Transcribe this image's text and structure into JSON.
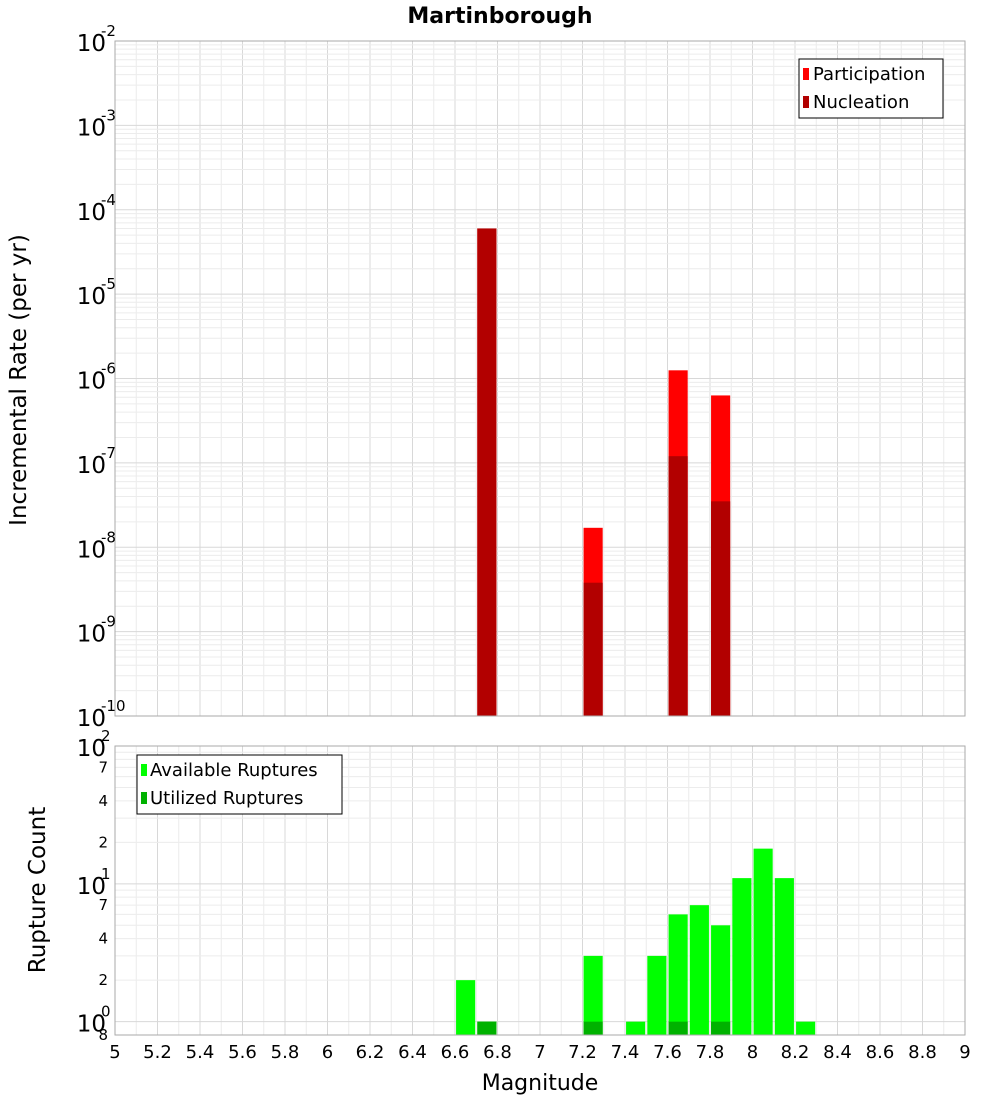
{
  "chart_data": [
    {
      "type": "bar",
      "title": "Martinborough",
      "xlabel": "Magnitude",
      "ylabel": "Incremental Rate (per yr)",
      "yscale": "log",
      "xlim": [
        5,
        9
      ],
      "ylim": [
        1e-10,
        0.01
      ],
      "bar_width": 0.09,
      "legend": {
        "placement": "top-right",
        "entries": [
          "Participation",
          "Nucleation"
        ]
      },
      "series": [
        {
          "name": "Participation",
          "color": "#ff0000",
          "x": [
            6.75,
            7.25,
            7.65,
            7.85
          ],
          "values": [
            6e-05,
            1.7e-08,
            1.25e-06,
            6.3e-07
          ]
        },
        {
          "name": "Nucleation",
          "color": "#b20000",
          "x": [
            6.75,
            7.25,
            7.65,
            7.85
          ],
          "values": [
            6e-05,
            3.8e-09,
            1.2e-07,
            3.5e-08
          ]
        }
      ],
      "y_major_ticks": [
        {
          "base": "10",
          "exp": "-2",
          "value": 0.01
        },
        {
          "base": "10",
          "exp": "-3",
          "value": 0.001
        },
        {
          "base": "10",
          "exp": "-4",
          "value": 0.0001
        },
        {
          "base": "10",
          "exp": "-5",
          "value": 1e-05
        },
        {
          "base": "10",
          "exp": "-6",
          "value": 1e-06
        },
        {
          "base": "10",
          "exp": "-7",
          "value": 1e-07
        },
        {
          "base": "10",
          "exp": "-8",
          "value": 1e-08
        },
        {
          "base": "10",
          "exp": "-9",
          "value": 1e-09
        },
        {
          "base": "10",
          "exp": "-10",
          "value": 1e-10
        }
      ],
      "grid": true
    },
    {
      "type": "bar",
      "xlabel": "Magnitude",
      "ylabel": "Rupture Count",
      "yscale": "log",
      "xlim": [
        5,
        9
      ],
      "ylim": [
        0.8,
        100
      ],
      "bar_width": 0.09,
      "legend": {
        "placement": "top-left",
        "entries": [
          "Available Ruptures",
          "Utilized Ruptures"
        ]
      },
      "series": [
        {
          "name": "Available Ruptures",
          "color": "#00ff00",
          "x": [
            6.65,
            6.75,
            7.25,
            7.45,
            7.55,
            7.65,
            7.75,
            7.85,
            7.95,
            8.05,
            8.15,
            8.25
          ],
          "values": [
            2,
            1,
            3,
            1,
            3,
            6,
            7,
            5,
            11,
            18,
            11,
            1
          ]
        },
        {
          "name": "Utilized Ruptures",
          "color": "#00b200",
          "x": [
            6.75,
            7.25,
            7.65,
            7.85
          ],
          "values": [
            1,
            1,
            1,
            1
          ]
        }
      ],
      "y_major_ticks": [
        {
          "base": "10",
          "exp": "2",
          "value": 100
        },
        {
          "base": "10",
          "exp": "1",
          "value": 10
        },
        {
          "base": "10",
          "exp": "0",
          "value": 1
        }
      ],
      "y_minor_ticks": [
        {
          "label": "7",
          "value": 70
        },
        {
          "label": "4",
          "value": 40
        },
        {
          "label": "2",
          "value": 20
        },
        {
          "label": "7",
          "value": 7
        },
        {
          "label": "4",
          "value": 4
        },
        {
          "label": "2",
          "value": 2
        },
        {
          "label": "8",
          "value": 0.8
        }
      ],
      "x_ticks": [
        "5",
        "5.2",
        "5.4",
        "5.6",
        "5.8",
        "6",
        "6.2",
        "6.4",
        "6.6",
        "6.8",
        "7",
        "7.2",
        "7.4",
        "7.6",
        "7.8",
        "8",
        "8.2",
        "8.4",
        "8.6",
        "8.8",
        "9"
      ],
      "grid": true
    }
  ]
}
